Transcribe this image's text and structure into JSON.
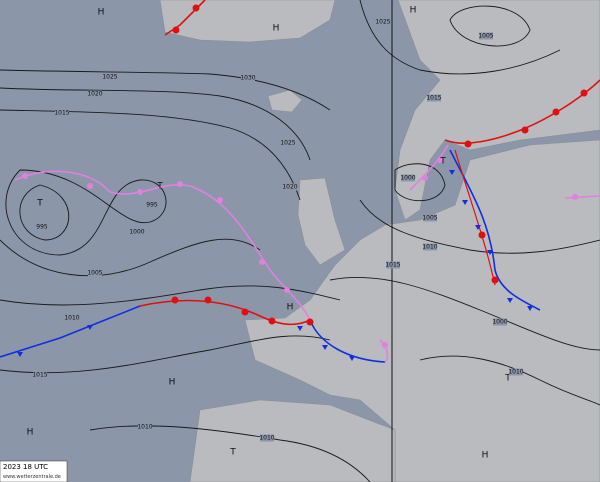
{
  "map": {
    "timestamp": "2023 18 UTC",
    "source": "www.wetterzentrale.de",
    "pressure_centers": [
      "H",
      "H",
      "T",
      "T",
      "H",
      "H",
      "T",
      "T",
      "H",
      "H",
      "H",
      "T"
    ],
    "isobar_labels": [
      "1025",
      "1020",
      "1015",
      "1030",
      "1025",
      "1020",
      "995",
      "995",
      "1000",
      "1005",
      "1010",
      "1015",
      "1010",
      "1010",
      "1025",
      "1015",
      "1005",
      "1000",
      "1005",
      "1010",
      "1015",
      "1000",
      "1010"
    ]
  }
}
